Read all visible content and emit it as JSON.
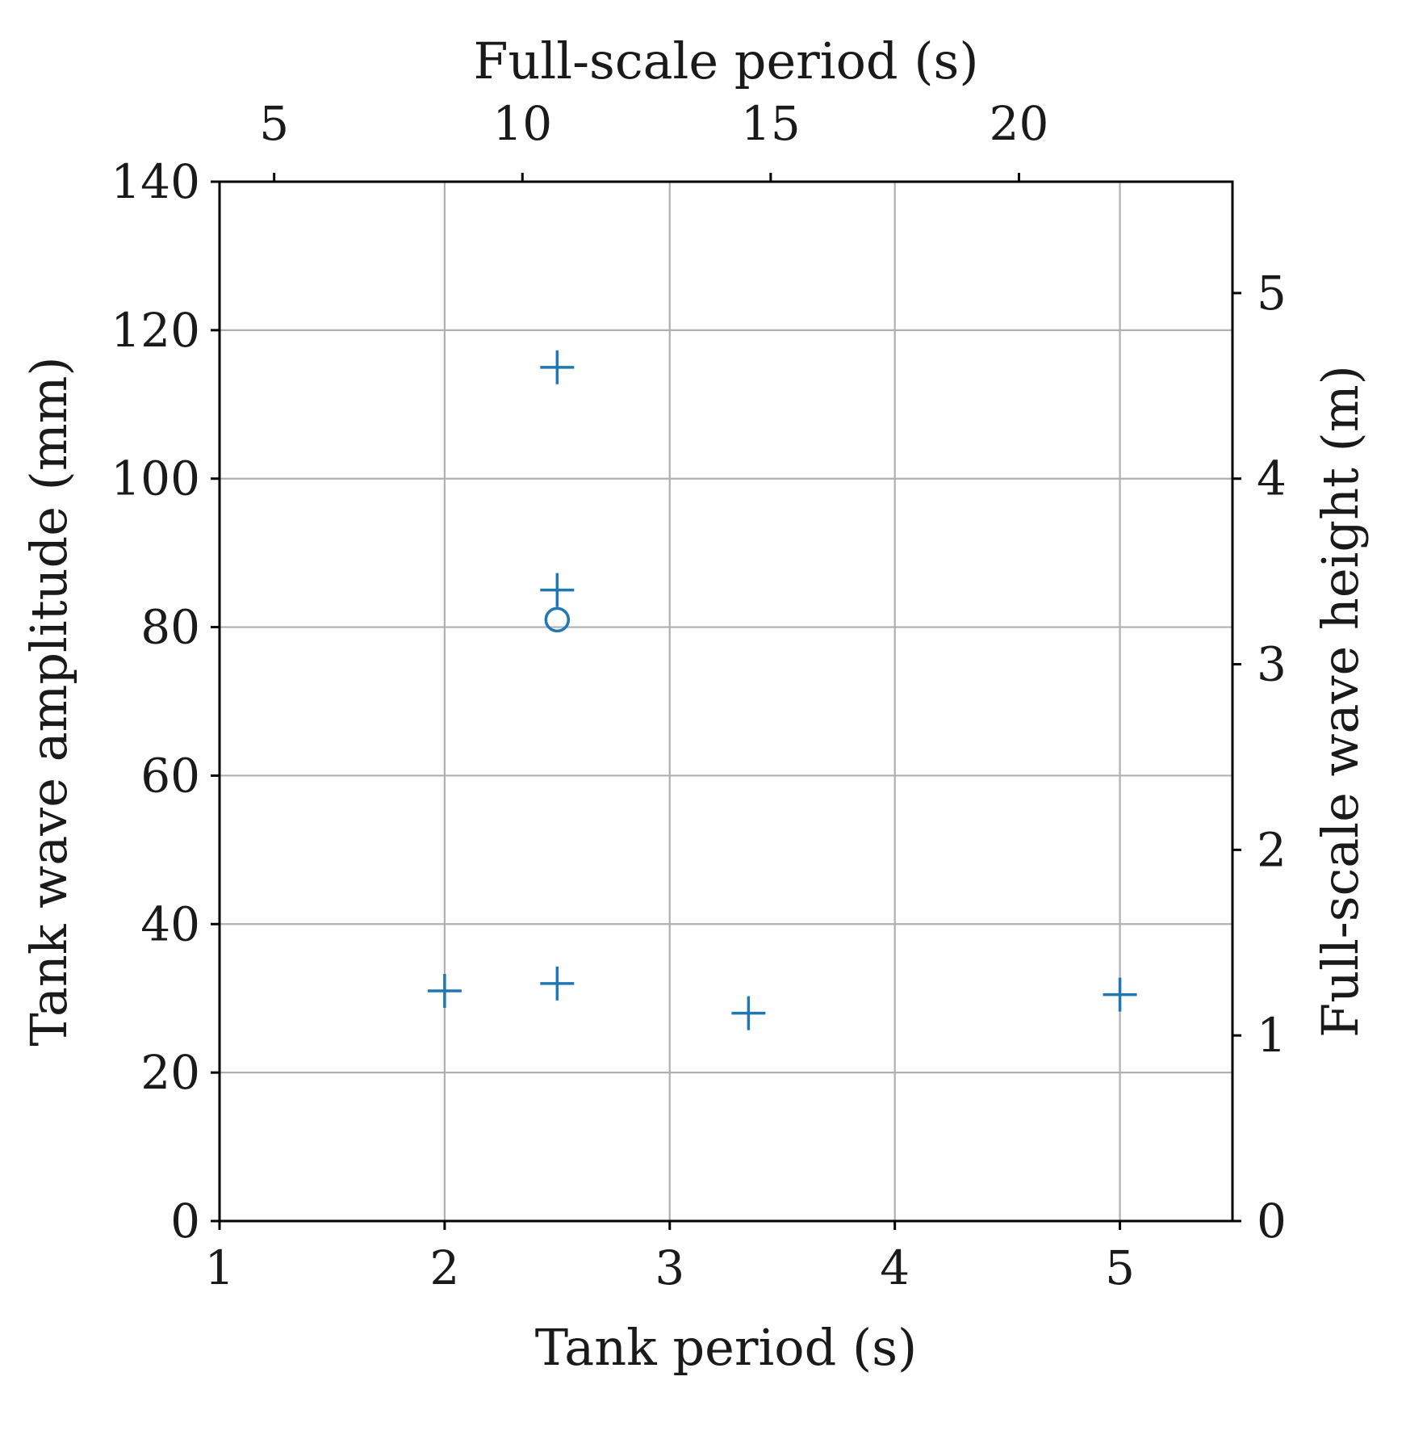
{
  "chart_data": {
    "type": "scatter",
    "xlabel": "Tank period (s)",
    "ylabel": "Tank wave amplitude (mm)",
    "x2label": "Full-scale period (s)",
    "y2label": "Full-scale wave height (m)",
    "xlim": [
      1,
      5.5
    ],
    "ylim": [
      0,
      140
    ],
    "x2lim": [
      3.9,
      24.3
    ],
    "y2lim": [
      0,
      5.6
    ],
    "x_ticks": [
      "1",
      "2",
      "3",
      "4",
      "5"
    ],
    "y_ticks": [
      "0",
      "20",
      "40",
      "60",
      "80",
      "100",
      "120",
      "140"
    ],
    "x2_ticks": [
      "5",
      "10",
      "15",
      "20"
    ],
    "y2_ticks": [
      "0",
      "1",
      "2",
      "3",
      "4",
      "5"
    ],
    "grid": true,
    "marker_color": "#1f77b4",
    "series": [
      {
        "marker": "plus",
        "points": [
          {
            "x": 2.0,
            "y": 31
          },
          {
            "x": 2.5,
            "y": 32
          },
          {
            "x": 2.5,
            "y": 85
          },
          {
            "x": 2.5,
            "y": 115
          },
          {
            "x": 3.35,
            "y": 28
          },
          {
            "x": 5.0,
            "y": 30.5
          }
        ]
      },
      {
        "marker": "circle",
        "points": [
          {
            "x": 2.5,
            "y": 81
          }
        ]
      }
    ]
  }
}
